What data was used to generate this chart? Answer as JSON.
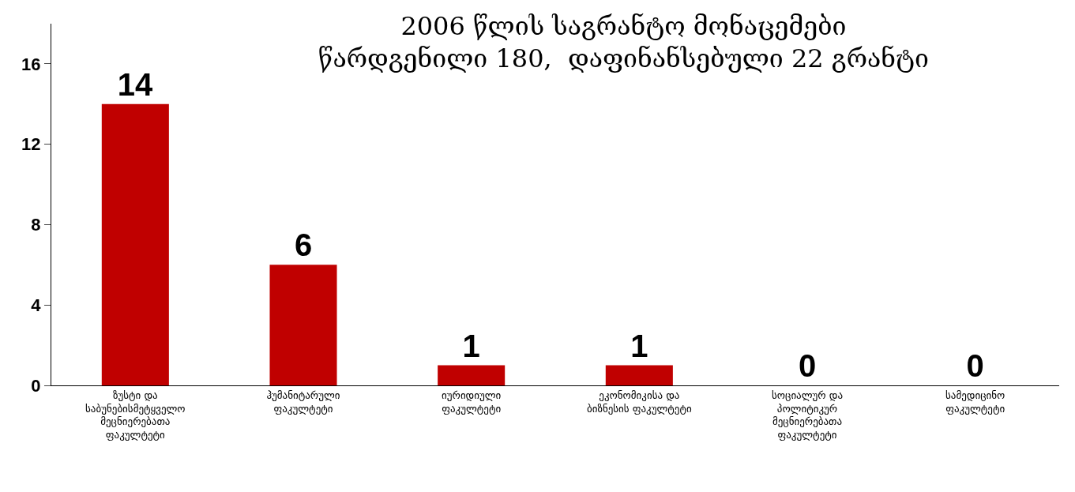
{
  "chart_data": {
    "type": "bar",
    "title": "2006 წლის საგრანტო მონაცემები\nწარდგენილი 180,  დაფინანსებული 22 გრანტი",
    "categories": [
      "ზუსტი და საბუნებისმეტყველო მეცნიერებათა ფაკულტეტი",
      "ჰუმანიტარული ფაკულტეტი",
      "იურიდიული ფაკულტეტი",
      "ეკონომიკისა და ბიზნესის ფაკულტეტი",
      "სოციალურ და პოლიტიკურ მეცნიერებათა ფაკულტეტი",
      "სამედიცინო ფაკულტეტი"
    ],
    "values": [
      14,
      6,
      1,
      1,
      0,
      0
    ],
    "color": "#c00000",
    "ylim": [
      0,
      18
    ],
    "yticks": [
      0,
      4,
      8,
      12,
      16
    ],
    "data_labels": true
  }
}
